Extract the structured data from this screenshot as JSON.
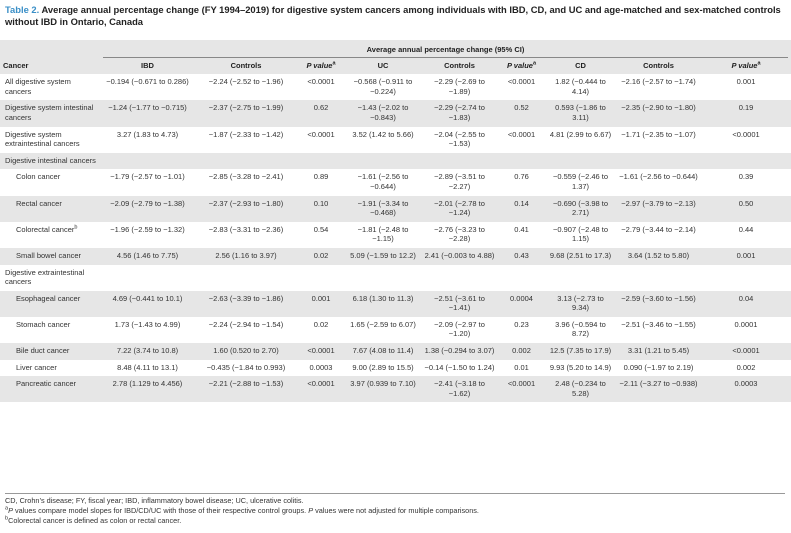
{
  "caption": {
    "label": "Table 2.",
    "text": "Average annual percentage change (FY 1994–2019) for digestive system cancers among individuals with IBD, CD, and UC and age-matched and sex-matched controls without IBD in Ontario, Canada"
  },
  "header": {
    "span_label": "Average annual percentage change (95% CI)",
    "columns": [
      "Cancer",
      "IBD",
      "Controls",
      "P value",
      "UC",
      "Controls",
      "P value",
      "CD",
      "Controls",
      "P value"
    ],
    "pvalue_sup": "a"
  },
  "rows": [
    {
      "name": "All digestive system cancers",
      "sub": false,
      "cells": [
        "−0.194 (−0.671 to 0.286)",
        "−2.24 (−2.52 to −1.96)",
        "<0.0001",
        "−0.568 (−0.911 to −0.224)",
        "−2.29 (−2.69 to −1.89)",
        "<0.0001",
        "1.82 (−0.444 to 4.14)",
        "−2.16 (−2.57 to −1.74)",
        "0.001"
      ]
    },
    {
      "name": "Digestive system intestinal cancers",
      "sub": false,
      "cells": [
        "−1.24 (−1.77 to −0.715)",
        "−2.37 (−2.75 to −1.99)",
        "0.62",
        "−1.43 (−2.02 to −0.843)",
        "−2.29 (−2.74 to −1.83)",
        "0.52",
        "0.593 (−1.86 to 3.11)",
        "−2.35 (−2.90 to −1.80)",
        "0.19"
      ]
    },
    {
      "name": "Digestive system extraintestinal cancers",
      "sub": false,
      "cells": [
        "3.27 (1.83 to 4.73)",
        "−1.87 (−2.33 to −1.42)",
        "<0.0001",
        "3.52 (1.42 to 5.66)",
        "−2.04 (−2.55 to −1.53)",
        "<0.0001",
        "4.81 (2.99 to 6.67)",
        "−1.71 (−2.35 to −1.07)",
        "<0.0001"
      ]
    },
    {
      "name": "Digestive intestinal cancers",
      "sub": false,
      "header": true,
      "cells": [
        "",
        "",
        "",
        "",
        "",
        "",
        "",
        "",
        ""
      ]
    },
    {
      "name": "Colon cancer",
      "sub": true,
      "cells": [
        "−1.79 (−2.57 to −1.01)",
        "−2.85 (−3.28 to −2.41)",
        "0.89",
        "−1.61 (−2.56 to −0.644)",
        "−2.89 (−3.51 to −2.27)",
        "0.76",
        "−0.559 (−2.46 to 1.37)",
        "−1.61 (−2.56 to −0.644)",
        "0.39"
      ]
    },
    {
      "name": "Rectal cancer",
      "sub": true,
      "cells": [
        "−2.09 (−2.79 to −1.38)",
        "−2.37 (−2.93 to −1.80)",
        "0.10",
        "−1.91 (−3.34 to −0.468)",
        "−2.01 (−2.78 to −1.24)",
        "0.14",
        "−0.690 (−3.98 to 2.71)",
        "−2.97 (−3.79 to −2.13)",
        "0.50"
      ]
    },
    {
      "name": "Colorectal cancer",
      "sup": "b",
      "sub": true,
      "cells": [
        "−1.96 (−2.59 to −1.32)",
        "−2.83 (−3.31 to −2.36)",
        "0.54",
        "−1.81 (−2.48 to −1.15)",
        "−2.76 (−3.23 to −2.28)",
        "0.41",
        "−0.907 (−2.48 to 1.15)",
        "−2.79 (−3.44 to −2.14)",
        "0.44"
      ]
    },
    {
      "name": "Small bowel cancer",
      "sub": true,
      "cells": [
        "4.56 (1.46 to 7.75)",
        "2.56 (1.16 to 3.97)",
        "0.02",
        "5.09 (−1.59 to 12.2)",
        "2.41 (−0.003 to 4.88)",
        "0.43",
        "9.68 (2.51 to 17.3)",
        "3.64 (1.52 to 5.80)",
        "0.001"
      ]
    },
    {
      "name": "Digestive extraintestinal cancers",
      "sub": false,
      "header": true,
      "cells": [
        "",
        "",
        "",
        "",
        "",
        "",
        "",
        "",
        ""
      ]
    },
    {
      "name": "Esophageal cancer",
      "sub": true,
      "cells": [
        "4.69 (−0.441 to 10.1)",
        "−2.63 (−3.39 to −1.86)",
        "0.001",
        "6.18 (1.30 to 11.3)",
        "−2.51 (−3.61 to −1.41)",
        "0.0004",
        "3.13 (−2.73 to 9.34)",
        "−2.59 (−3.60 to −1.56)",
        "0.04"
      ]
    },
    {
      "name": "Stomach cancer",
      "sub": true,
      "cells": [
        "1.73 (−1.43 to 4.99)",
        "−2.24 (−2.94 to −1.54)",
        "0.02",
        "1.65 (−2.59 to 6.07)",
        "−2.09 (−2.97 to −1.20)",
        "0.23",
        "3.96 (−0.594 to 8.72)",
        "−2.51 (−3.46 to −1.55)",
        "0.0001"
      ]
    },
    {
      "name": "Bile duct cancer",
      "sub": true,
      "cells": [
        "7.22 (3.74 to 10.8)",
        "1.60 (0.520 to 2.70)",
        "<0.0001",
        "7.67 (4.08 to 11.4)",
        "1.38 (−0.294 to 3.07)",
        "0.002",
        "12.5 (7.35 to 17.9)",
        "3.31 (1.21 to 5.45)",
        "<0.0001"
      ]
    },
    {
      "name": "Liver cancer",
      "sub": true,
      "cells": [
        "8.48 (4.11 to 13.1)",
        "−0.435 (−1.84 to 0.993)",
        "0.0003",
        "9.00 (2.89 to 15.5)",
        "−0.14 (−1.50 to 1.24)",
        "0.01",
        "9.93 (5.20 to 14.9)",
        "0.090 (−1.97 to 2.19)",
        "0.002"
      ]
    },
    {
      "name": "Pancreatic cancer",
      "sub": true,
      "cells": [
        "2.78 (1.129 to 4.456)",
        "−2.21 (−2.88 to −1.53)",
        "<0.0001",
        "3.97 (0.939 to 7.10)",
        "−2.41 (−3.18 to −1.62)",
        "<0.0001",
        "2.48 (−0.234 to 5.28)",
        "−2.11 (−3.27 to −0.938)",
        "0.0003"
      ]
    }
  ],
  "footnotes": {
    "abbrev": "CD, Crohn’s disease; FY, fiscal year; IBD, inflammatory bowel disease; UC, ulcerative colitis.",
    "a_sup": "a",
    "a_lead": "P",
    "a_text": " values compare model slopes for IBD/CD/UC with those of their respective control groups. ",
    "a_lead2": "P",
    "a_text2": " values were not adjusted for multiple comparisons.",
    "b_sup": "b",
    "b_text": "Colorectal cancer is defined as colon or rectal cancer."
  }
}
